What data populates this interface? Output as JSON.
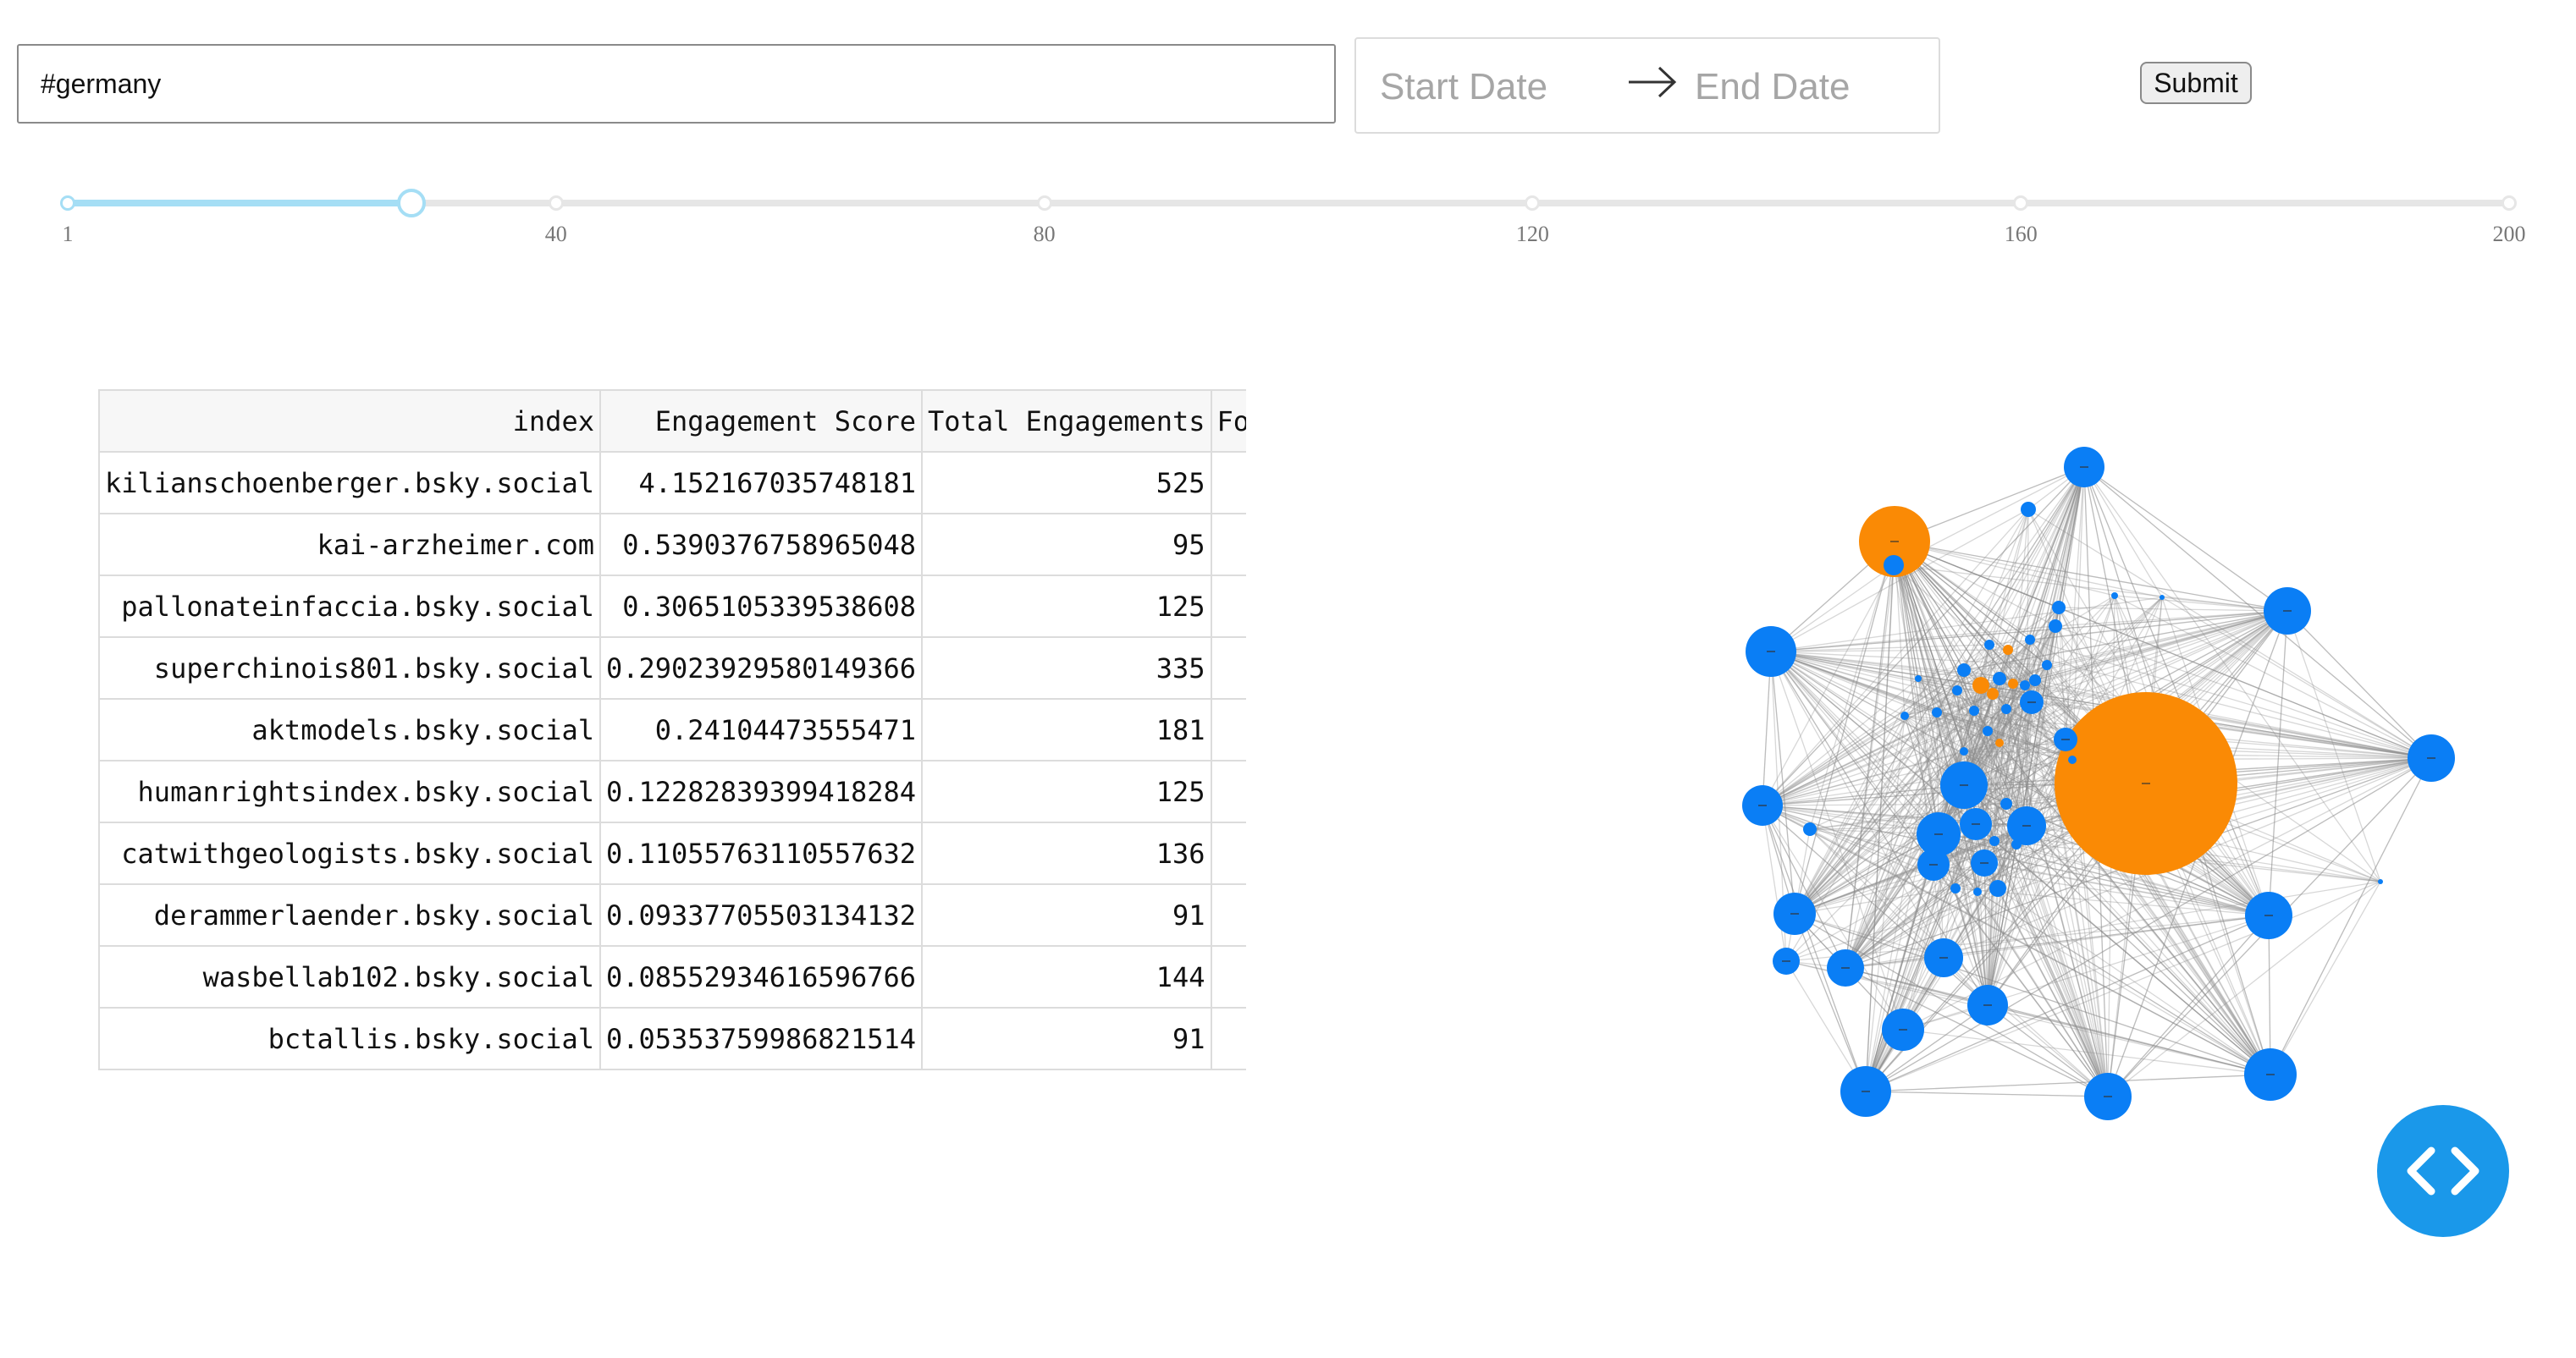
{
  "search": {
    "value": "#germany"
  },
  "date_range": {
    "start_placeholder": "Start Date",
    "end_placeholder": "End Date",
    "arrow_icon": "arrow-right-icon"
  },
  "submit": {
    "label": "Submit"
  },
  "slider": {
    "min": 1,
    "max": 200,
    "value": 29,
    "marks": [
      "1",
      "40",
      "80",
      "120",
      "160",
      "200"
    ],
    "colors": {
      "track": "#a5def5",
      "rail": "#e6e6e6"
    }
  },
  "table": {
    "columns": [
      "index",
      "Engagement Score",
      "Total Engagements",
      "Fol"
    ],
    "rows": [
      [
        "kilianschoenberger.bsky.social",
        "4.152167035748181",
        "525"
      ],
      [
        "kai-arzheimer.com",
        "0.5390376758965048",
        "95"
      ],
      [
        "pallonateinfaccia.bsky.social",
        "0.3065105339538608",
        "125"
      ],
      [
        "superchinois801.bsky.social",
        "0.29023929580149366",
        "335"
      ],
      [
        "aktmodels.bsky.social",
        "0.24104473555471",
        "181"
      ],
      [
        "humanrightsindex.bsky.social",
        "0.12282839399418284",
        "125"
      ],
      [
        "catwithgeologists.bsky.social",
        "0.11055763110557632",
        "136"
      ],
      [
        "derammerlaender.bsky.social",
        "0.09337705503134132",
        "91"
      ],
      [
        "wasbellab102.bsky.social",
        "0.08552934616596766",
        "144"
      ],
      [
        "bctallis.bsky.social",
        "0.05353759986821514",
        "91"
      ]
    ]
  },
  "network": {
    "colors": {
      "primary": "#0a7ef5",
      "highlight": "#fa8a05",
      "edge": "#8c8c8c"
    }
  },
  "code_toggle": {
    "icon": "code-brackets-icon",
    "color": "#1a98ea"
  }
}
